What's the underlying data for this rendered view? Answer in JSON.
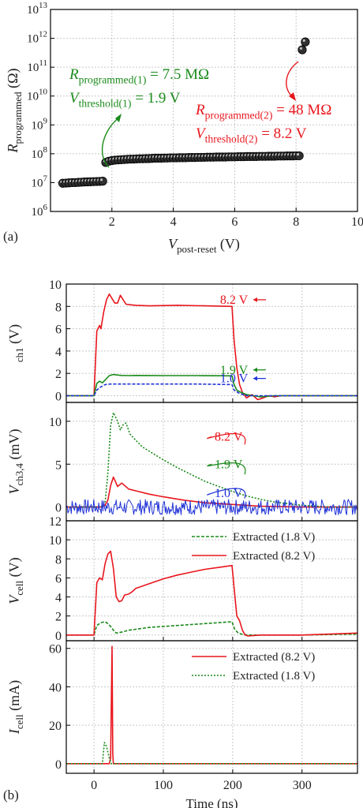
{
  "panel_labels": {
    "a": "(a)",
    "b": "(b)"
  },
  "colors": {
    "red": "#e8161d",
    "green": "#1a8a1a",
    "blue": "#1f32d8",
    "grid": "#c8c8c8"
  },
  "chart_data": [
    {
      "id": "a",
      "type": "scatter",
      "xlabel": {
        "main": "V",
        "sub": "post-reset",
        "unit": " (V)"
      },
      "ylabel": {
        "main": "R",
        "sub": "programmed",
        "unit": " (Ω)"
      },
      "xlim": [
        0,
        10
      ],
      "ylim_log10": [
        6,
        13
      ],
      "yscale": "log",
      "xticks": [
        2,
        4,
        6,
        8,
        10
      ],
      "ytick_exponents": [
        6,
        7,
        8,
        9,
        10,
        11,
        12,
        13
      ],
      "grid": true,
      "series": [
        {
          "x": [
            0.4,
            0.5,
            0.6,
            0.7,
            0.8,
            0.9,
            1.0,
            1.1,
            1.2,
            1.3,
            1.4,
            1.5,
            1.6,
            1.7,
            1.8,
            1.9,
            2.0,
            2.1,
            2.2,
            2.3,
            2.4,
            2.5,
            2.6,
            2.7,
            2.8,
            2.9,
            3.0,
            3.1,
            3.2,
            3.3,
            3.4,
            3.5,
            3.6,
            3.7,
            3.8,
            3.9,
            4.0,
            4.1,
            4.2,
            4.3,
            4.4,
            4.5,
            4.6,
            4.7,
            4.8,
            4.9,
            5.0,
            5.1,
            5.2,
            5.3,
            5.4,
            5.5,
            5.6,
            5.7,
            5.8,
            5.9,
            6.0,
            6.1,
            6.2,
            6.3,
            6.4,
            6.5,
            6.6,
            6.7,
            6.8,
            6.9,
            7.0,
            7.1,
            7.2,
            7.3,
            7.4,
            7.5,
            7.6,
            7.7,
            7.8,
            7.9,
            8.0,
            8.1,
            8.2,
            8.3
          ],
          "y": [
            9500000.0,
            9600000.0,
            9800000.0,
            10000000.0,
            10000000.0,
            10200000.0,
            10300000.0,
            10500000.0,
            10600000.0,
            10700000.0,
            10800000.0,
            10900000.0,
            11000000.0,
            11200000.0,
            50000000.0,
            55000000.0,
            58000000.0,
            60000000.0,
            61000000.0,
            62000000.0,
            63000000.0,
            64000000.0,
            65000000.0,
            65000000.0,
            66000000.0,
            67000000.0,
            67000000.0,
            68000000.0,
            68000000.0,
            69000000.0,
            70000000.0,
            70000000.0,
            70000000.0,
            71000000.0,
            71000000.0,
            72000000.0,
            72000000.0,
            72000000.0,
            73000000.0,
            73000000.0,
            73000000.0,
            74000000.0,
            74000000.0,
            74000000.0,
            75000000.0,
            75000000.0,
            75000000.0,
            76000000.0,
            76000000.0,
            76000000.0,
            77000000.0,
            77000000.0,
            77000000.0,
            77000000.0,
            78000000.0,
            78000000.0,
            78000000.0,
            79000000.0,
            79000000.0,
            79000000.0,
            80000000.0,
            80000000.0,
            80000000.0,
            80000000.0,
            81000000.0,
            81000000.0,
            81000000.0,
            82000000.0,
            82000000.0,
            82000000.0,
            83000000.0,
            83000000.0,
            83000000.0,
            84000000.0,
            84000000.0,
            84000000.0,
            85000000.0,
            85000000.0,
            400000000000.0,
            750000000000.0
          ]
        }
      ],
      "annotations": [
        {
          "color": "green",
          "line1": {
            "main": "R",
            "sub": "programmed(1)",
            "rest": " = 7.5 MΩ"
          },
          "line2": {
            "main": "V",
            "sub": "threshold(1)",
            "rest": " = 1.9 V"
          }
        },
        {
          "color": "red",
          "line1": {
            "main": "R",
            "sub": "programmed(2)",
            "rest": " = 48 MΩ"
          },
          "line2": {
            "main": "V",
            "sub": "threshold(2)",
            "rest": " = 8.2 V"
          }
        }
      ]
    },
    {
      "id": "b1",
      "type": "line",
      "ylabel": {
        "main": "",
        "sub": "ch1",
        "unit": " (V)"
      },
      "xlim": [
        -40,
        380
      ],
      "ylim": [
        -0.6,
        10
      ],
      "yticks": [
        0,
        2,
        4,
        6,
        8,
        10
      ],
      "grid": true,
      "series": [
        {
          "name": "8.2 V",
          "color": "red",
          "style": "solid",
          "x": [
            -40,
            0,
            4,
            8,
            10,
            14,
            18,
            22,
            26,
            30,
            34,
            38,
            42,
            46,
            52,
            60,
            80,
            120,
            160,
            199,
            202,
            206,
            210,
            214,
            220,
            228,
            236,
            244,
            252,
            260,
            270,
            280,
            300,
            340,
            380
          ],
          "y": [
            0,
            0,
            5.8,
            6.3,
            6.0,
            7.5,
            8.6,
            9.1,
            8.7,
            8.3,
            8.3,
            9.0,
            8.6,
            8.2,
            8.15,
            8.1,
            8.05,
            8.1,
            8.05,
            8.0,
            5.0,
            2.5,
            1.0,
            0.3,
            -0.2,
            0.1,
            -0.35,
            -0.2,
            0.0,
            -0.1,
            0.0,
            0.0,
            0.0,
            0.0,
            0.0
          ]
        },
        {
          "name": "1.9 V",
          "color": "green",
          "style": "solid",
          "x": [
            -40,
            0,
            4,
            8,
            12,
            16,
            22,
            28,
            34,
            40,
            50,
            60,
            100,
            150,
            199,
            202,
            206,
            212,
            220,
            230,
            240,
            260,
            300,
            380
          ],
          "y": [
            0,
            0,
            1.1,
            1.3,
            1.15,
            1.4,
            1.8,
            1.9,
            1.85,
            1.82,
            1.8,
            1.82,
            1.8,
            1.8,
            1.78,
            1.0,
            0.5,
            0.3,
            0.1,
            0.0,
            -0.1,
            0.0,
            0.0,
            0.0
          ]
        },
        {
          "name": "1.0 V",
          "color": "blue",
          "style": "dashed",
          "x": [
            -40,
            0,
            4,
            10,
            16,
            24,
            40,
            100,
            150,
            199,
            202,
            210,
            220,
            380
          ],
          "y": [
            0,
            0,
            0.5,
            0.8,
            1.0,
            1.05,
            1.05,
            1.05,
            1.05,
            1.0,
            0.5,
            0.2,
            0.0,
            0.0
          ]
        }
      ],
      "labels": [
        {
          "text": "8.2 V",
          "color": "red",
          "x": 150,
          "y": 8.1
        },
        {
          "text": "1.9 V",
          "color": "green",
          "x": 150,
          "y": 1.82
        },
        {
          "text": "1.0 V",
          "color": "blue",
          "x": 150,
          "y": 1.05
        }
      ]
    },
    {
      "id": "b2",
      "type": "line",
      "ylabel": {
        "main": "V",
        "sub": "ch3,4",
        "unit": " (mV)"
      },
      "xlim": [
        -40,
        380
      ],
      "ylim": [
        -1.6,
        12.2
      ],
      "yticks": [
        0,
        5,
        10
      ],
      "grid": true,
      "series": [
        {
          "name": "8.2 V",
          "color": "red",
          "style": "solid",
          "x": [
            -40,
            0,
            10,
            16,
            20,
            24,
            28,
            34,
            40,
            50,
            60,
            80,
            100,
            130,
            160,
            200,
            240,
            300,
            380
          ],
          "y": [
            0,
            0,
            0,
            0.2,
            0.8,
            2.5,
            3.5,
            2.4,
            2.8,
            2.1,
            1.9,
            1.5,
            1.2,
            0.8,
            0.5,
            0.3,
            0.1,
            0.0,
            0.0
          ]
        },
        {
          "name": "1.9 V",
          "color": "green",
          "style": "dotted",
          "x": [
            -40,
            0,
            10,
            16,
            20,
            24,
            28,
            34,
            38,
            42,
            46,
            52,
            60,
            70,
            80,
            100,
            120,
            140,
            160,
            180,
            200,
            220,
            240,
            260,
            280,
            300,
            320,
            340,
            380
          ],
          "y": [
            0,
            0,
            0,
            0.5,
            4.0,
            9.5,
            11.0,
            10.0,
            9.0,
            9.6,
            9.8,
            8.5,
            7.8,
            7.0,
            6.5,
            5.5,
            4.6,
            3.8,
            3.0,
            2.4,
            1.8,
            1.3,
            0.9,
            0.6,
            0.4,
            0.2,
            0.1,
            0.0,
            0.0
          ]
        },
        {
          "name": "1.0 V",
          "color": "blue",
          "style": "noisy",
          "x": [
            -40,
            380
          ],
          "y": [
            0,
            0
          ],
          "noise": 0.9
        }
      ],
      "labels": [
        {
          "text": "8.2 V",
          "color": "red",
          "x": 240,
          "y": 7.3
        },
        {
          "text": "1.9 V",
          "color": "green",
          "x": 240,
          "y": 3.8
        },
        {
          "text": "1.0 V",
          "color": "blue",
          "x": 240,
          "y": 1.0
        }
      ]
    },
    {
      "id": "b3",
      "type": "line",
      "ylabel": {
        "main": "V",
        "sub": "cell",
        "unit": " (V)"
      },
      "xlim": [
        -40,
        380
      ],
      "ylim": [
        -0.6,
        12
      ],
      "yticks": [
        0,
        2,
        4,
        6,
        8,
        10,
        12
      ],
      "grid": true,
      "series": [
        {
          "name": "Extracted (1.8 V)",
          "color": "green",
          "style": "dashed",
          "x": [
            -40,
            0,
            4,
            10,
            16,
            20,
            24,
            28,
            32,
            40,
            50,
            60,
            80,
            100,
            120,
            140,
            160,
            180,
            199,
            203,
            208,
            215,
            225,
            240,
            300,
            380
          ],
          "y": [
            0,
            0,
            1.0,
            1.3,
            1.4,
            1.2,
            0.9,
            0.5,
            0.2,
            0.3,
            0.5,
            0.6,
            0.8,
            0.9,
            1.0,
            1.1,
            1.2,
            1.3,
            1.4,
            0.6,
            0.2,
            0.05,
            0.0,
            0.0,
            0.0,
            0.1
          ]
        },
        {
          "name": "Extracted (8.2 V)",
          "color": "red",
          "style": "solid",
          "x": [
            -40,
            0,
            4,
            8,
            12,
            16,
            20,
            24,
            28,
            32,
            36,
            40,
            44,
            50,
            56,
            60,
            80,
            100,
            120,
            140,
            160,
            180,
            199,
            202,
            206,
            210,
            214,
            218,
            222,
            240,
            300,
            380
          ],
          "y": [
            0,
            0,
            5.5,
            6.0,
            5.8,
            7.5,
            8.5,
            8.8,
            7.0,
            4.0,
            3.5,
            3.6,
            4.2,
            4.3,
            4.6,
            4.9,
            5.4,
            5.9,
            6.3,
            6.6,
            6.9,
            7.1,
            7.3,
            5.0,
            2.0,
            1.5,
            0.5,
            0.0,
            -0.1,
            0.0,
            0.0,
            0.2
          ]
        }
      ],
      "legend": [
        "Extracted (1.8 V)",
        "Extracted (8.2 V)"
      ]
    },
    {
      "id": "b4",
      "type": "line",
      "ylabel": {
        "main": "I",
        "sub": "cell",
        "unit": " (mA)"
      },
      "xlabel": {
        "main": "Time (ns)"
      },
      "xlim": [
        -40,
        380
      ],
      "ylim": [
        -5,
        64
      ],
      "yticks": [
        0,
        20,
        40,
        60
      ],
      "xticks": [
        0,
        100,
        200,
        300
      ],
      "grid": true,
      "series": [
        {
          "name": "Extracted (8.2 V)",
          "color": "red",
          "style": "solid",
          "x": [
            -40,
            22,
            24,
            26,
            27,
            28,
            380
          ],
          "y": [
            0,
            0,
            3,
            61,
            5,
            0,
            0
          ]
        },
        {
          "name": "Extracted (1.8 V)",
          "color": "green",
          "style": "dotted",
          "x": [
            -40,
            12,
            15,
            18,
            22,
            25,
            380
          ],
          "y": [
            0,
            0,
            11,
            9,
            3,
            0,
            0
          ]
        }
      ],
      "legend": [
        "Extracted (8.2 V)",
        "Extracted (1.8 V)"
      ]
    }
  ]
}
